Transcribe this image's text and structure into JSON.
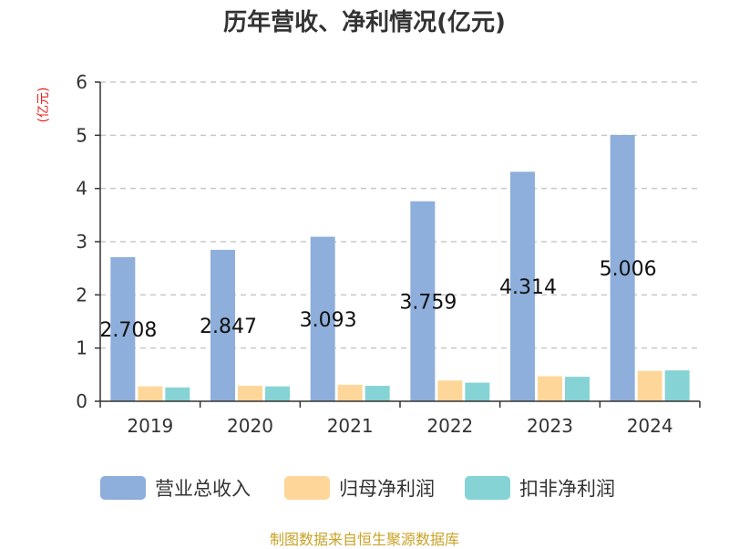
{
  "title": "历年营收、净利情况(亿元)",
  "source": "制图数据来自恒生聚源数据库",
  "colors": {
    "revenue": "#8eaedb",
    "net_profit_parent": "#ffd699",
    "net_profit_deducted": "#86d3d6",
    "unit_label": "#e8201c",
    "grid": "#c8c8c8",
    "axis": "#333333",
    "text": "#333333",
    "source": "#c9a227"
  },
  "chart_data": {
    "type": "bar",
    "title": "历年营收、净利情况(亿元)",
    "ylabel": "(亿元)",
    "xlabel": "",
    "categories": [
      "2019",
      "2020",
      "2021",
      "2022",
      "2023",
      "2024"
    ],
    "ylim": [
      0,
      6
    ],
    "yticks": [
      0,
      1,
      2,
      3,
      4,
      5,
      6
    ],
    "grid": true,
    "legend_position": "bottom",
    "series": [
      {
        "name": "营业总收入",
        "values": [
          2.708,
          2.847,
          3.093,
          3.759,
          4.314,
          5.006
        ],
        "data_labels": [
          "2.708",
          "2.847",
          "3.093",
          "3.759",
          "4.314",
          "5.006"
        ]
      },
      {
        "name": "归母净利润",
        "values": [
          0.28,
          0.29,
          0.31,
          0.39,
          0.47,
          0.57
        ]
      },
      {
        "name": "扣非净利润",
        "values": [
          0.26,
          0.28,
          0.29,
          0.35,
          0.46,
          0.58
        ]
      }
    ]
  }
}
